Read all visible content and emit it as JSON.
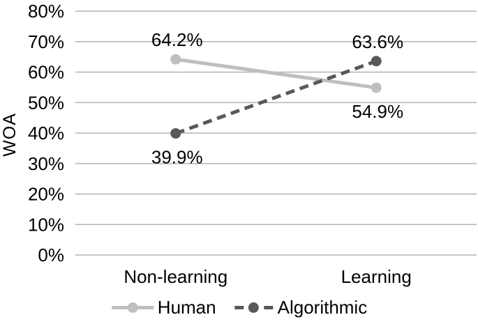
{
  "chart_data": {
    "type": "line",
    "title": "",
    "ylabel": "WOA",
    "xlabel": "",
    "categories": [
      "Non-learning",
      "Learning"
    ],
    "series": [
      {
        "name": "Human",
        "values": [
          64.2,
          54.9
        ],
        "point_labels": [
          "64.2%",
          "54.9%"
        ],
        "label_sides": [
          "above",
          "below"
        ],
        "style": "solid",
        "color": "#bfbfbf"
      },
      {
        "name": "Algorithmic",
        "values": [
          39.9,
          63.6
        ],
        "point_labels": [
          "39.9%",
          "63.6%"
        ],
        "label_sides": [
          "below",
          "above"
        ],
        "style": "dashed",
        "color": "#595959"
      }
    ],
    "ylim": [
      0,
      80
    ],
    "ytick_step": 10,
    "ytick_labels": [
      "0%",
      "10%",
      "20%",
      "30%",
      "40%",
      "50%",
      "60%",
      "70%",
      "80%"
    ],
    "grid": "horizontal",
    "gridline_color": "#b3b3b3",
    "text_color": "#000000",
    "legend_position": "bottom"
  }
}
